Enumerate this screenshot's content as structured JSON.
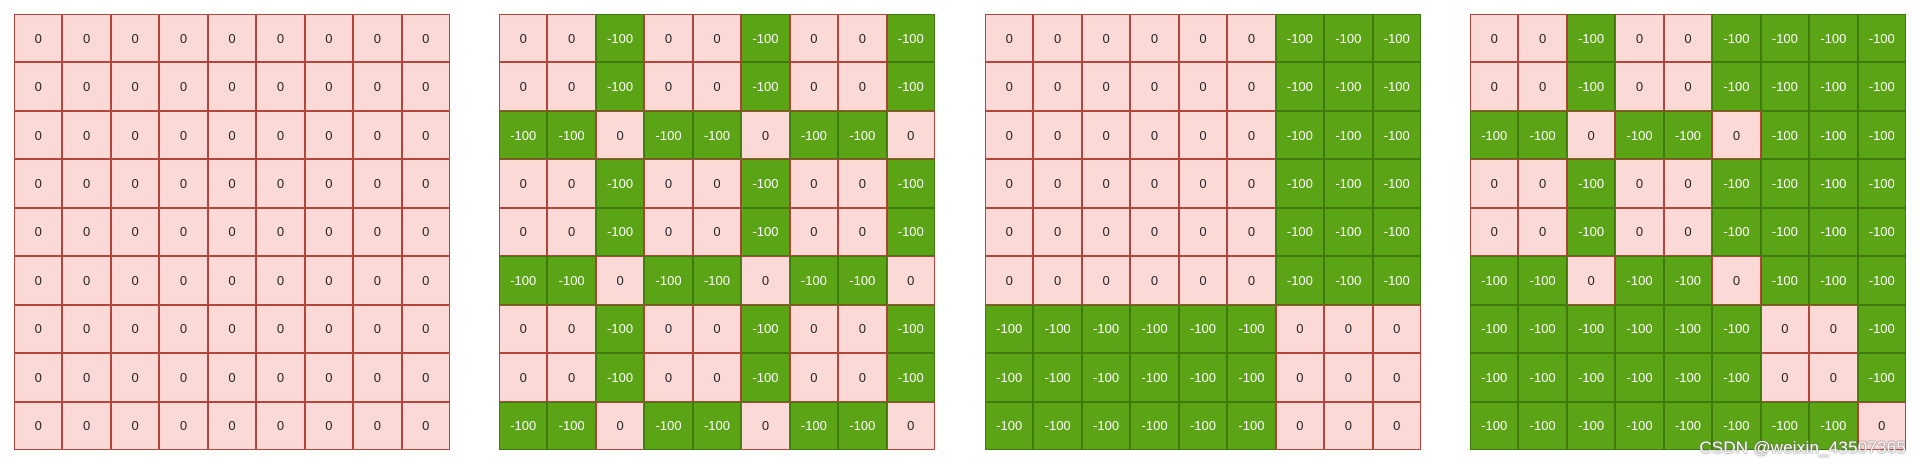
{
  "colors": {
    "zero_fill": "#fad9d6",
    "zero_border": "#b5443a",
    "neg_fill": "#5ba416",
    "neg_border": "#3f7a0c"
  },
  "grids": [
    {
      "rows": [
        [
          "0",
          "0",
          "0",
          "0",
          "0",
          "0",
          "0",
          "0",
          "0"
        ],
        [
          "0",
          "0",
          "0",
          "0",
          "0",
          "0",
          "0",
          "0",
          "0"
        ],
        [
          "0",
          "0",
          "0",
          "0",
          "0",
          "0",
          "0",
          "0",
          "0"
        ],
        [
          "0",
          "0",
          "0",
          "0",
          "0",
          "0",
          "0",
          "0",
          "0"
        ],
        [
          "0",
          "0",
          "0",
          "0",
          "0",
          "0",
          "0",
          "0",
          "0"
        ],
        [
          "0",
          "0",
          "0",
          "0",
          "0",
          "0",
          "0",
          "0",
          "0"
        ],
        [
          "0",
          "0",
          "0",
          "0",
          "0",
          "0",
          "0",
          "0",
          "0"
        ],
        [
          "0",
          "0",
          "0",
          "0",
          "0",
          "0",
          "0",
          "0",
          "0"
        ],
        [
          "0",
          "0",
          "0",
          "0",
          "0",
          "0",
          "0",
          "0",
          "0"
        ]
      ]
    },
    {
      "rows": [
        [
          "0",
          "0",
          "-100",
          "0",
          "0",
          "-100",
          "0",
          "0",
          "-100"
        ],
        [
          "0",
          "0",
          "-100",
          "0",
          "0",
          "-100",
          "0",
          "0",
          "-100"
        ],
        [
          "-100",
          "-100",
          "0",
          "-100",
          "-100",
          "0",
          "-100",
          "-100",
          "0"
        ],
        [
          "0",
          "0",
          "-100",
          "0",
          "0",
          "-100",
          "0",
          "0",
          "-100"
        ],
        [
          "0",
          "0",
          "-100",
          "0",
          "0",
          "-100",
          "0",
          "0",
          "-100"
        ],
        [
          "-100",
          "-100",
          "0",
          "-100",
          "-100",
          "0",
          "-100",
          "-100",
          "0"
        ],
        [
          "0",
          "0",
          "-100",
          "0",
          "0",
          "-100",
          "0",
          "0",
          "-100"
        ],
        [
          "0",
          "0",
          "-100",
          "0",
          "0",
          "-100",
          "0",
          "0",
          "-100"
        ],
        [
          "-100",
          "-100",
          "0",
          "-100",
          "-100",
          "0",
          "-100",
          "-100",
          "0"
        ]
      ]
    },
    {
      "rows": [
        [
          "0",
          "0",
          "0",
          "0",
          "0",
          "0",
          "-100",
          "-100",
          "-100"
        ],
        [
          "0",
          "0",
          "0",
          "0",
          "0",
          "0",
          "-100",
          "-100",
          "-100"
        ],
        [
          "0",
          "0",
          "0",
          "0",
          "0",
          "0",
          "-100",
          "-100",
          "-100"
        ],
        [
          "0",
          "0",
          "0",
          "0",
          "0",
          "0",
          "-100",
          "-100",
          "-100"
        ],
        [
          "0",
          "0",
          "0",
          "0",
          "0",
          "0",
          "-100",
          "-100",
          "-100"
        ],
        [
          "0",
          "0",
          "0",
          "0",
          "0",
          "0",
          "-100",
          "-100",
          "-100"
        ],
        [
          "-100",
          "-100",
          "-100",
          "-100",
          "-100",
          "-100",
          "0",
          "0",
          "0"
        ],
        [
          "-100",
          "-100",
          "-100",
          "-100",
          "-100",
          "-100",
          "0",
          "0",
          "0"
        ],
        [
          "-100",
          "-100",
          "-100",
          "-100",
          "-100",
          "-100",
          "0",
          "0",
          "0"
        ]
      ]
    },
    {
      "rows": [
        [
          "0",
          "0",
          "-100",
          "0",
          "0",
          "-100",
          "-100",
          "-100",
          "-100"
        ],
        [
          "0",
          "0",
          "-100",
          "0",
          "0",
          "-100",
          "-100",
          "-100",
          "-100"
        ],
        [
          "-100",
          "-100",
          "0",
          "-100",
          "-100",
          "0",
          "-100",
          "-100",
          "-100"
        ],
        [
          "0",
          "0",
          "-100",
          "0",
          "0",
          "-100",
          "-100",
          "-100",
          "-100"
        ],
        [
          "0",
          "0",
          "-100",
          "0",
          "0",
          "-100",
          "-100",
          "-100",
          "-100"
        ],
        [
          "-100",
          "-100",
          "0",
          "-100",
          "-100",
          "0",
          "-100",
          "-100",
          "-100"
        ],
        [
          "-100",
          "-100",
          "-100",
          "-100",
          "-100",
          "-100",
          "0",
          "0",
          "-100"
        ],
        [
          "-100",
          "-100",
          "-100",
          "-100",
          "-100",
          "-100",
          "0",
          "0",
          "-100"
        ],
        [
          "-100",
          "-100",
          "-100",
          "-100",
          "-100",
          "-100",
          "-100",
          "-100",
          "0"
        ]
      ]
    }
  ],
  "watermark": "CSDN @weixin_43507365"
}
